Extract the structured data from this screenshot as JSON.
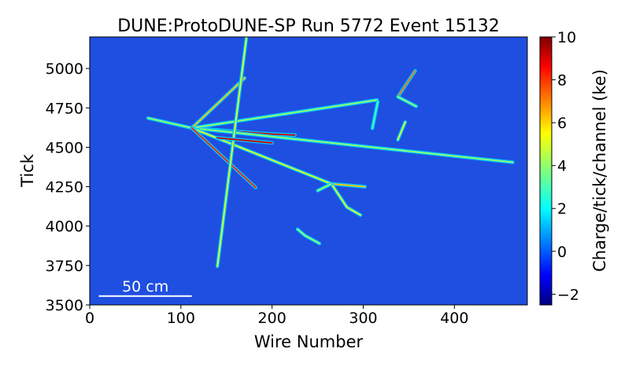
{
  "chart_data": {
    "type": "heatmap",
    "title": "DUNE:ProtoDUNE-SP Run 5772 Event 15132",
    "xlabel": "Wire Number",
    "ylabel": "Tick",
    "xlim": [
      0,
      480
    ],
    "ylim": [
      3500,
      5200
    ],
    "x_ticks": [
      0,
      100,
      200,
      300,
      400
    ],
    "y_ticks": [
      3500,
      3750,
      4000,
      4250,
      4500,
      4750,
      5000
    ],
    "colorbar": {
      "label": "Charge/tick/channel (ke)",
      "range": [
        -2.5,
        10
      ],
      "ticks": [
        -2,
        0,
        2,
        4,
        6,
        8,
        10
      ],
      "colormap": "jet"
    },
    "background_color": "#1f4fe0",
    "grid": false,
    "scale_bar": {
      "label": "50 cm",
      "x_start": 10,
      "x_end": 112,
      "y": 3556
    },
    "tracks": [
      {
        "points": [
          [
            64,
            4685
          ],
          [
            112,
            4622
          ]
        ],
        "peak": 4
      },
      {
        "points": [
          [
            112,
            4622
          ],
          [
            200,
            4584
          ],
          [
            225,
            4578
          ]
        ],
        "peak": 9
      },
      {
        "points": [
          [
            112,
            4622
          ],
          [
            464,
            4405
          ]
        ],
        "peak": 4
      },
      {
        "points": [
          [
            112,
            4622
          ],
          [
            315,
            4800
          ]
        ],
        "peak": 4
      },
      {
        "points": [
          [
            112,
            4622
          ],
          [
            170,
            4940
          ]
        ],
        "peak": 6
      },
      {
        "points": [
          [
            112,
            4622
          ],
          [
            265,
            4268
          ]
        ],
        "peak": 5
      },
      {
        "points": [
          [
            112,
            4622
          ],
          [
            182,
            4245
          ]
        ],
        "peak": 8
      },
      {
        "points": [
          [
            140,
            3745
          ],
          [
            172,
            5200
          ]
        ],
        "peak": 5
      },
      {
        "points": [
          [
            140,
            4560
          ],
          [
            200,
            4528
          ]
        ],
        "peak": 9
      },
      {
        "points": [
          [
            338,
            4820
          ],
          [
            357,
            4985
          ]
        ],
        "peak": 7
      },
      {
        "points": [
          [
            338,
            4820
          ],
          [
            358,
            4760
          ]
        ],
        "peak": 4
      },
      {
        "points": [
          [
            316,
            4790
          ],
          [
            310,
            4620
          ]
        ],
        "peak": 3
      },
      {
        "points": [
          [
            346,
            4660
          ],
          [
            338,
            4548
          ]
        ],
        "peak": 5
      },
      {
        "points": [
          [
            265,
            4268
          ],
          [
            302,
            4250
          ]
        ],
        "peak": 6
      },
      {
        "points": [
          [
            265,
            4268
          ],
          [
            282,
            4120
          ],
          [
            297,
            4070
          ]
        ],
        "peak": 5
      },
      {
        "points": [
          [
            250,
            4225
          ],
          [
            265,
            4268
          ]
        ],
        "peak": 4
      },
      {
        "points": [
          [
            228,
            3980
          ],
          [
            236,
            3940
          ],
          [
            252,
            3890
          ]
        ],
        "peak": 4
      }
    ]
  }
}
